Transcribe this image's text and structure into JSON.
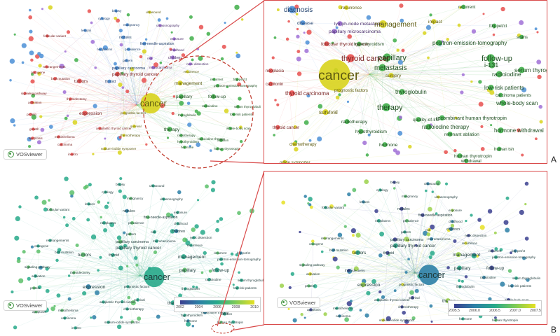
{
  "brand": "VOSviewer",
  "panel_labels": {
    "top": "A",
    "bottom": "B"
  },
  "colors": {
    "red": "#e8504f",
    "green": "#3fae49",
    "blue": "#4b8fd6",
    "purple": "#a070d6",
    "yellow": "#d8d31c",
    "frame": "#d94a4a"
  },
  "legends": {
    "left": {
      "ticks": [
        "2002",
        "2004",
        "2006",
        "2008",
        "2010"
      ]
    },
    "right": {
      "ticks": [
        "2005.5",
        "2006.0",
        "2006.5",
        "2007.0",
        "2007.5"
      ]
    }
  },
  "network_labels": [
    {
      "t": "biopsy",
      "c": "blue",
      "s": 1
    },
    {
      "t": "ultrasound",
      "c": "yellow",
      "s": 1
    },
    {
      "t": "cytology",
      "c": "blue",
      "s": 1
    },
    {
      "t": "malignancy",
      "c": "blue",
      "s": 1
    },
    {
      "t": "ultrasonography",
      "c": "purple",
      "s": 1
    },
    {
      "t": "lesions",
      "c": "blue",
      "s": 1
    },
    {
      "t": "follicular variant",
      "c": "red",
      "s": 1
    },
    {
      "t": "nodules",
      "c": "blue",
      "s": 1.2
    },
    {
      "t": "exposure",
      "c": "purple",
      "s": 1
    },
    {
      "t": "fine-needle-aspiration",
      "c": "blue",
      "s": 1.2
    },
    {
      "t": "childhood",
      "c": "purple",
      "s": 1
    },
    {
      "t": "neoplasms",
      "c": "blue",
      "s": 1.1
    },
    {
      "t": "prevalence",
      "c": "blue",
      "s": 1.1
    },
    {
      "t": "risk",
      "c": "purple",
      "s": 1.1
    },
    {
      "t": "children",
      "c": "purple",
      "s": 1.3
    },
    {
      "t": "pattern",
      "c": "blue",
      "s": 1
    },
    {
      "t": "neck dissection",
      "c": "purple",
      "s": 1
    },
    {
      "t": "rearrangements",
      "c": "red",
      "s": 1
    },
    {
      "t": "papillary carcinoma",
      "c": "blue",
      "s": 1.3
    },
    {
      "t": "microcarcinoma",
      "c": "purple",
      "s": 1.1
    },
    {
      "t": "papillary thyroid cancer",
      "c": "red",
      "s": 1.5
    },
    {
      "t": "oncogene",
      "c": "red",
      "s": 1
    },
    {
      "t": "recurrence",
      "c": "yellow",
      "s": 1
    },
    {
      "t": "braf mutation",
      "c": "red",
      "s": 1.1
    },
    {
      "t": "tumors",
      "c": "red",
      "s": 1.5
    },
    {
      "t": "thyroid",
      "c": "blue",
      "s": 1.2
    },
    {
      "t": "management",
      "c": "yellow",
      "s": 1.6
    },
    {
      "t": "recurrent",
      "c": "green",
      "s": 1
    },
    {
      "t": "fdg-pet/ct",
      "c": "green",
      "s": 1
    },
    {
      "t": "positron-emission-tomography",
      "c": "green",
      "s": 1.1
    },
    {
      "t": "signaling pathway",
      "c": "red",
      "s": 1
    },
    {
      "t": "activation",
      "c": "red",
      "s": 1.1
    },
    {
      "t": "cancer",
      "c": "yellow",
      "s": 3
    },
    {
      "t": "papillary",
      "c": "green",
      "s": 1.5
    },
    {
      "t": "follow-up",
      "c": "green",
      "s": 1.5
    },
    {
      "t": "expression",
      "c": "red",
      "s": 1.6
    },
    {
      "t": "thyroidectomy",
      "c": "red",
      "s": 1
    },
    {
      "t": "radioiodine",
      "c": "green",
      "s": 1.1
    },
    {
      "t": "serum thyroglobulin",
      "c": "green",
      "s": 1.1
    },
    {
      "t": "protein",
      "c": "red",
      "s": 1
    },
    {
      "t": "prognostic factors",
      "c": "yellow",
      "s": 1
    },
    {
      "t": "low-risk patients",
      "c": "green",
      "s": 1.1
    },
    {
      "t": "thyroglobulin",
      "c": "green",
      "s": 1
    },
    {
      "t": "survival",
      "c": "yellow",
      "s": 1.1
    },
    {
      "t": "therapy",
      "c": "green",
      "s": 1.6
    },
    {
      "t": "whole-body scan",
      "c": "green",
      "s": 1.1
    },
    {
      "t": "growth",
      "c": "red",
      "s": 1
    },
    {
      "t": "anaplastic thyroid cancer",
      "c": "red",
      "s": 1
    },
    {
      "t": "radiotherapy",
      "c": "green",
      "s": 1
    },
    {
      "t": "radioiodine therapy",
      "c": "green",
      "s": 1.1
    },
    {
      "t": "ablation",
      "c": "green",
      "s": 1.1
    },
    {
      "t": "mesothelioma",
      "c": "red",
      "s": 1
    },
    {
      "t": "chemotherapy",
      "c": "yellow",
      "s": 1
    },
    {
      "t": "hypothyroidism",
      "c": "green",
      "s": 1
    },
    {
      "t": "apoptosis",
      "c": "red",
      "s": 1
    },
    {
      "t": "carcinoma",
      "c": "red",
      "s": 1
    },
    {
      "t": "hormone",
      "c": "green",
      "s": 1
    },
    {
      "t": "human thyrotropin",
      "c": "green",
      "s": 1
    },
    {
      "t": "sodium-iodide symporter",
      "c": "yellow",
      "s": 1
    },
    {
      "t": "in-vitro",
      "c": "red",
      "s": 1
    }
  ],
  "zoom_labels": [
    {
      "t": "recurrence",
      "c": "yellow",
      "s": 1
    },
    {
      "t": "recurrent",
      "c": "green",
      "s": 1
    },
    {
      "t": "diagnosis",
      "c": "blue",
      "s": 1.6
    },
    {
      "t": "lymph-node metastasis",
      "c": "purple",
      "s": 1.1
    },
    {
      "t": "management",
      "c": "yellow",
      "s": 1.7
    },
    {
      "t": "impact",
      "c": "yellow",
      "s": 1.1
    },
    {
      "t": "fdg-pet/ct",
      "c": "green",
      "s": 1
    },
    {
      "t": "disease",
      "c": "blue",
      "s": 1.1
    },
    {
      "t": "papillary microcarcinoma",
      "c": "purple",
      "s": 1.1
    },
    {
      "t": "scans",
      "c": "green",
      "s": 1
    },
    {
      "t": "follicular thyroid cancer",
      "c": "red",
      "s": 1.1
    },
    {
      "t": "hyperthyroidism",
      "c": "green",
      "s": 1
    },
    {
      "t": "positron-emission-tomography",
      "c": "green",
      "s": 1.3
    },
    {
      "t": "thyroid cancer",
      "c": "red",
      "s": 1.8
    },
    {
      "t": "papillary",
      "c": "green",
      "s": 1.8
    },
    {
      "t": "follow-up",
      "c": "green",
      "s": 1.8
    },
    {
      "t": "i-131",
      "c": "green",
      "s": 1.5
    },
    {
      "t": "cancer",
      "c": "yellow",
      "s": 3.2
    },
    {
      "t": "metastasis",
      "c": "green",
      "s": 1.6
    },
    {
      "t": "neoplasia",
      "c": "red",
      "s": 1
    },
    {
      "t": "surgery",
      "c": "yellow",
      "s": 1.1
    },
    {
      "t": "radioiodine",
      "c": "green",
      "s": 1.4
    },
    {
      "t": "serum thyroglobulin",
      "c": "green",
      "s": 1.4
    },
    {
      "t": "calcitonin",
      "c": "red",
      "s": 1
    },
    {
      "t": "low-risk patients",
      "c": "green",
      "s": 1.3
    },
    {
      "t": "thyroid carcinoma",
      "c": "red",
      "s": 1.3
    },
    {
      "t": "prognostic factors",
      "c": "yellow",
      "s": 1
    },
    {
      "t": "carcinoma patients",
      "c": "green",
      "s": 1
    },
    {
      "t": "thyroglobulin",
      "c": "green",
      "s": 1.3
    },
    {
      "t": "whole-body scan",
      "c": "green",
      "s": 1.3
    },
    {
      "t": "therapy",
      "c": "green",
      "s": 1.8
    },
    {
      "t": "survival",
      "c": "yellow",
      "s": 1.3
    },
    {
      "t": "radiotherapy",
      "c": "green",
      "s": 1.1
    },
    {
      "t": "quality-of-life",
      "c": "green",
      "s": 1.1
    },
    {
      "t": "recombinant human thyrotropin",
      "c": "green",
      "s": 1.2
    },
    {
      "t": "radioiodine therapy",
      "c": "green",
      "s": 1.3
    },
    {
      "t": "thyroid cancer",
      "c": "red",
      "s": 1
    },
    {
      "t": "hypothyroidism",
      "c": "green",
      "s": 1.1
    },
    {
      "t": "remnant ablation",
      "c": "green",
      "s": 1.1
    },
    {
      "t": "hormone withdrawal",
      "c": "green",
      "s": 1.3
    },
    {
      "t": "chemotherapy",
      "c": "yellow",
      "s": 1
    },
    {
      "t": "hormone",
      "c": "green",
      "s": 1.1
    },
    {
      "t": "human tsh",
      "c": "green",
      "s": 1
    },
    {
      "t": "human thyrotropin",
      "c": "green",
      "s": 1.1
    },
    {
      "t": "withdrawal",
      "c": "green",
      "s": 1
    },
    {
      "t": "odide symporter",
      "c": "yellow",
      "s": 1
    }
  ]
}
